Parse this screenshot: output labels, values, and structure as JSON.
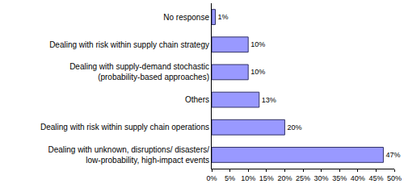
{
  "chart_data": {
    "type": "bar",
    "orientation": "horizontal",
    "categories": [
      "No response",
      "Dealing with risk within supply chain strategy",
      "Dealing with supply-demand stochastic (probability-based approaches)",
      "Others",
      "Dealing with risk within supply chain operations",
      "Dealing with unknown, disruptions/ disasters/ low-probability, high-impact events"
    ],
    "values": [
      1,
      10,
      10,
      13,
      20,
      47
    ],
    "value_labels": [
      "1%",
      "10%",
      "10%",
      "13%",
      "20%",
      "47%"
    ],
    "data_labels": true,
    "color": "#9999ff",
    "xlim": [
      0,
      50
    ],
    "xticks": [
      {
        "value": 0,
        "label": "0%"
      },
      {
        "value": 5,
        "label": "5%"
      },
      {
        "value": 10,
        "label": "10%"
      },
      {
        "value": 15,
        "label": "15%"
      },
      {
        "value": 20,
        "label": "20%"
      },
      {
        "value": 25,
        "label": "25%"
      },
      {
        "value": 30,
        "label": "30%"
      },
      {
        "value": 35,
        "label": "35%"
      },
      {
        "value": 40,
        "label": "40%"
      },
      {
        "value": 45,
        "label": "45%"
      },
      {
        "value": 50,
        "label": "50%"
      }
    ],
    "grid": false
  }
}
